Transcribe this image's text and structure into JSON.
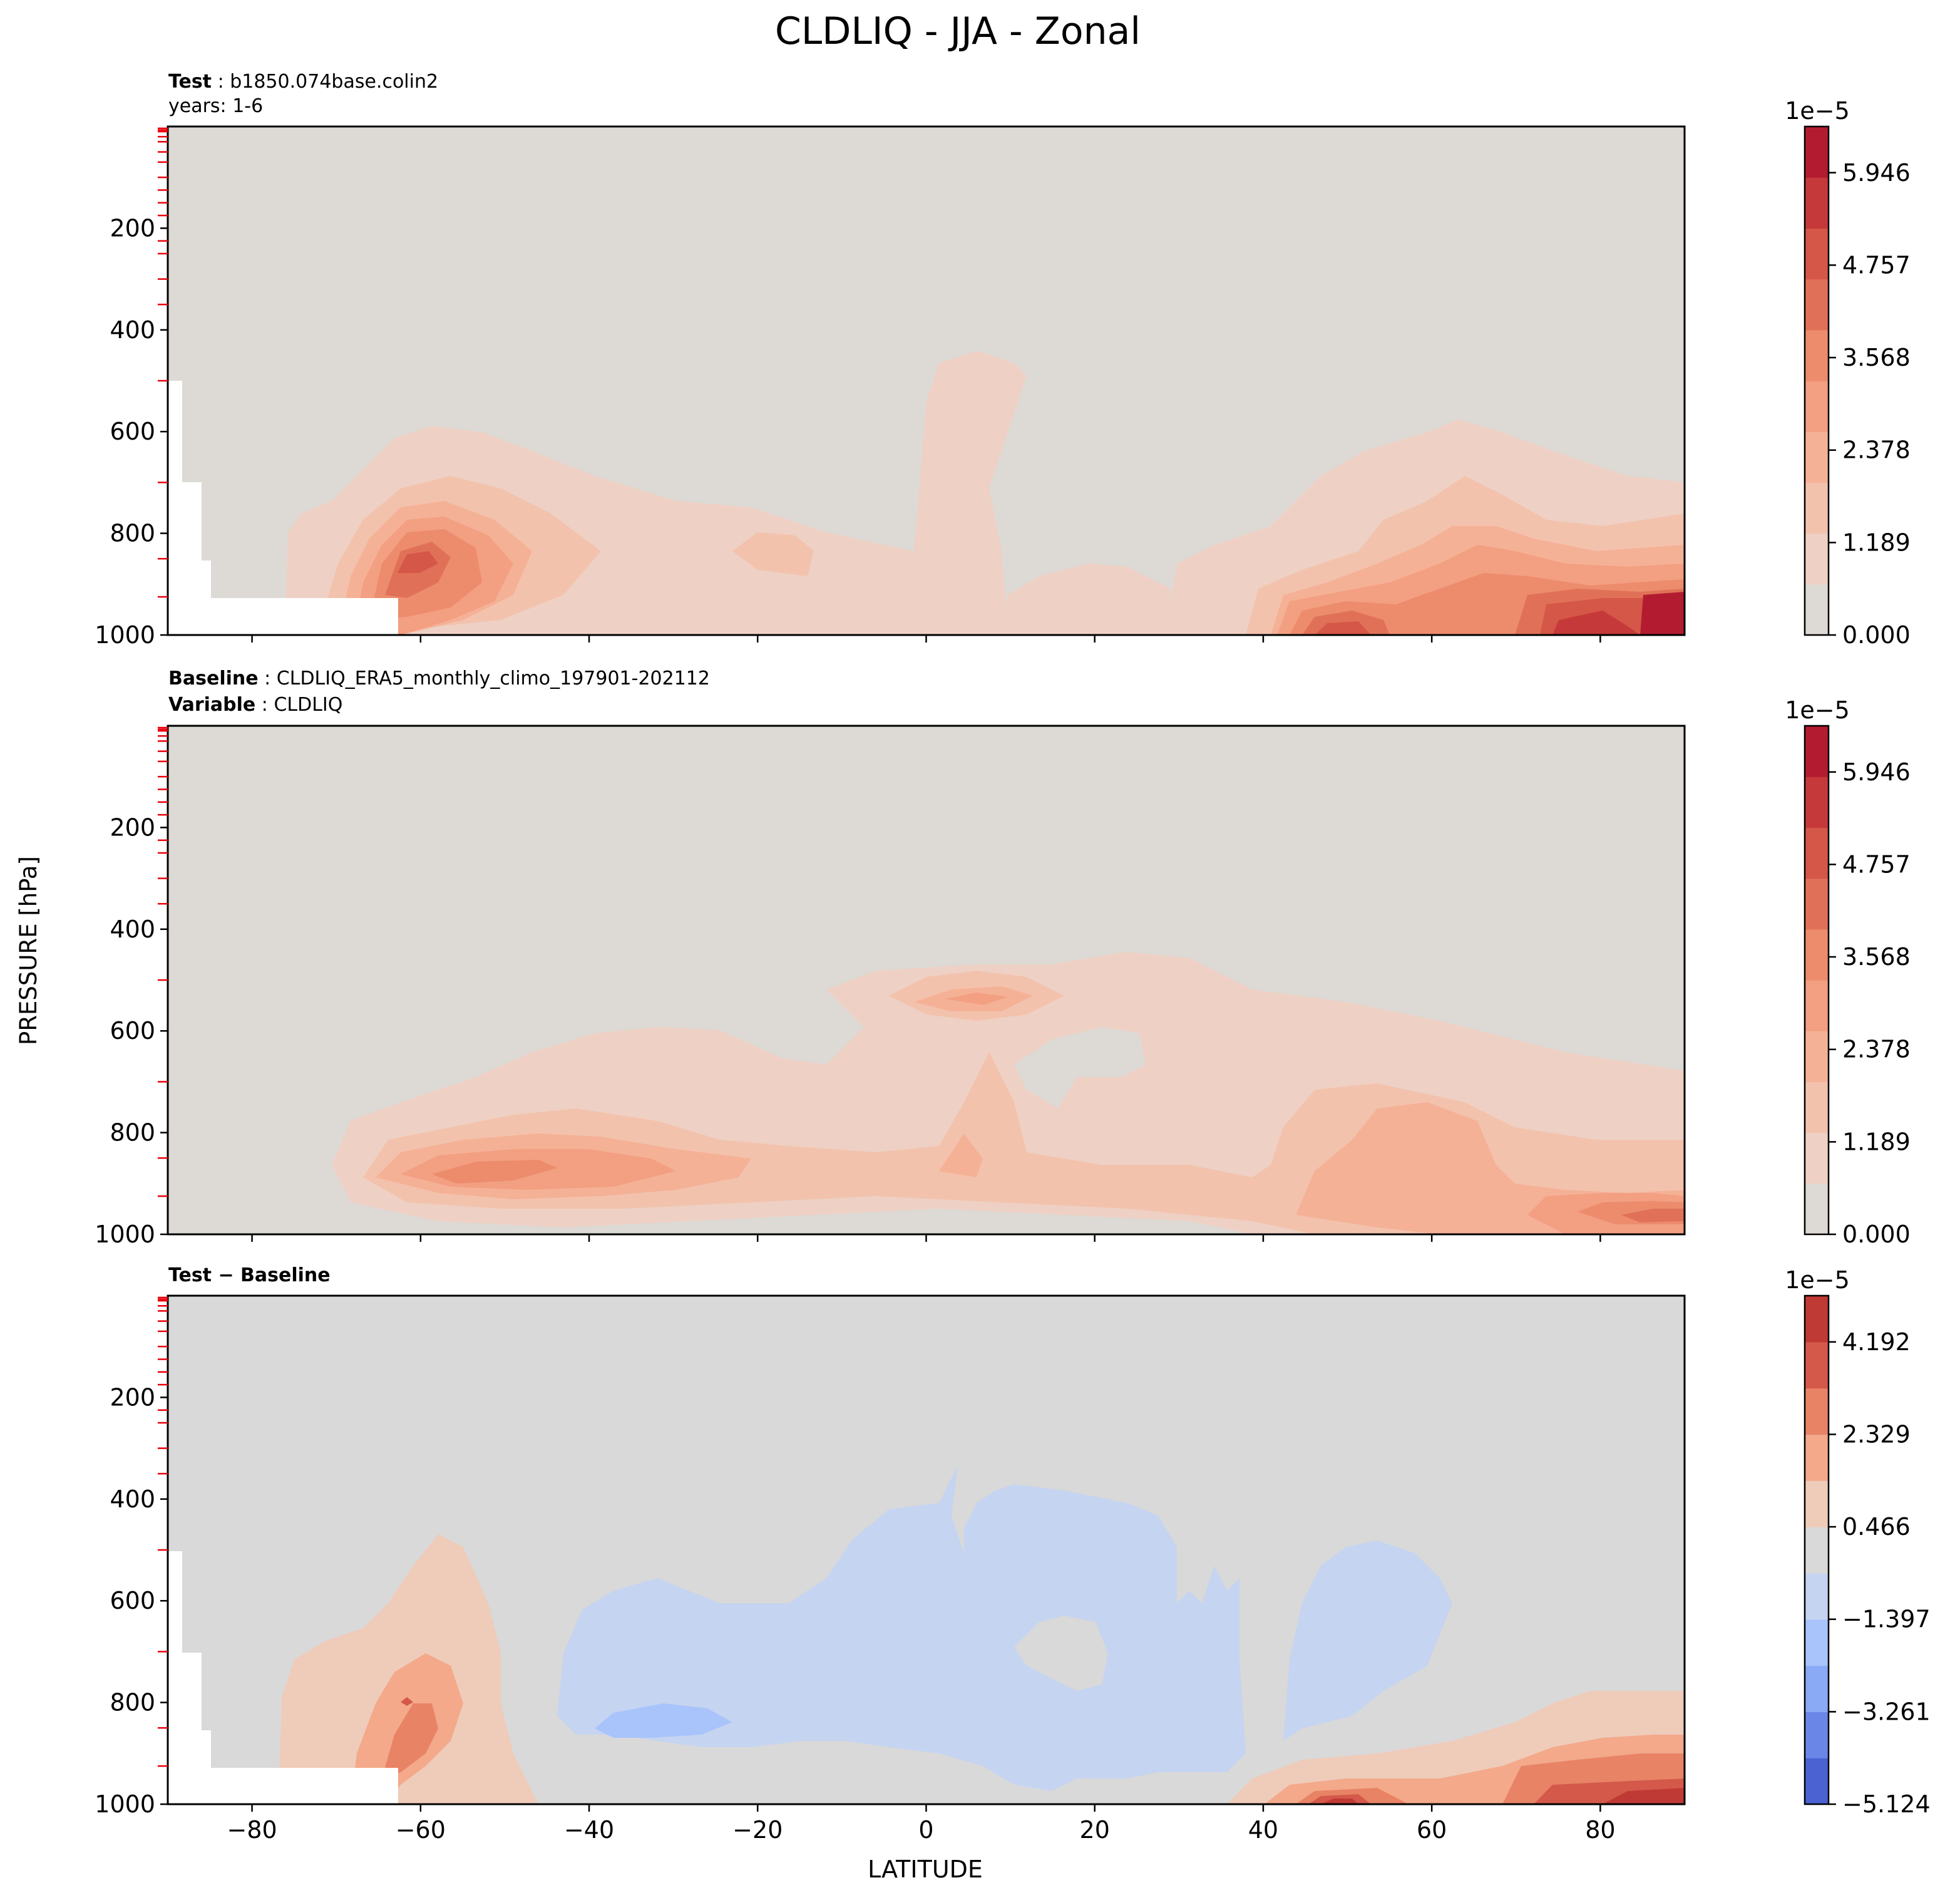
{
  "figure": {
    "title": "CLDLIQ - JJA - Zonal",
    "ylabel": "PRESSURE [hPa]",
    "xlabel": "LATITUDE"
  },
  "chart_data": [
    {
      "type": "heatmap",
      "panel": "test",
      "header": [
        {
          "bold": "Test",
          "sep": " : ",
          "text": "b1850.074base.colin2"
        },
        {
          "bold": "",
          "sep": "",
          "text": "years: 1-6"
        }
      ],
      "xlim": [
        -90,
        90
      ],
      "ylim": [
        1000,
        0
      ],
      "xticks": [
        -80,
        -60,
        -40,
        -20,
        0,
        20,
        40,
        60,
        80
      ],
      "xticks_labeled": false,
      "yticks": [
        200,
        400,
        600,
        800,
        1000
      ],
      "colorbar": {
        "offset_label": "1e−5",
        "ticks": [
          "0.000",
          "1.189",
          "2.378",
          "3.568",
          "4.757",
          "5.946"
        ],
        "range": [
          0,
          6.54
        ],
        "colors": [
          "#ddd9d5",
          "#eed1c4",
          "#f3c2ad",
          "#f5b196",
          "#f39f81",
          "#ec8c6c",
          "#e07158",
          "#d55747",
          "#c6393a",
          "#b31c30"
        ]
      },
      "features": [
        {
          "name": "SH low cloud max",
          "lat": -60,
          "lev": 860,
          "value": 4.5
        },
        {
          "name": "NH polar low cloud max",
          "lat": 82,
          "lev": 960,
          "value": 6.0
        },
        {
          "name": "NH midlatitude max",
          "lat": 50,
          "lev": 990,
          "value": 4.0
        },
        {
          "name": "tropical plume",
          "lat": 5,
          "lev": 700,
          "value": 1.0
        }
      ]
    },
    {
      "type": "heatmap",
      "panel": "baseline",
      "header": [
        {
          "bold": "Baseline",
          "sep": " : ",
          "text": "CLDLIQ_ERA5_monthly_climo_197901-202112"
        },
        {
          "bold": "Variable",
          "sep": " : ",
          "text": "CLDLIQ"
        }
      ],
      "xlim": [
        -90,
        90
      ],
      "ylim": [
        1000,
        0
      ],
      "xticks": [
        -80,
        -60,
        -40,
        -20,
        0,
        20,
        40,
        60,
        80
      ],
      "xticks_labeled": false,
      "yticks": [
        200,
        400,
        600,
        800,
        1000
      ],
      "colorbar": {
        "offset_label": "1e−5",
        "ticks": [
          "0.000",
          "1.189",
          "2.378",
          "3.568",
          "4.757",
          "5.946"
        ],
        "range": [
          0,
          6.54
        ],
        "colors": [
          "#ddd9d5",
          "#eed1c4",
          "#f3c2ad",
          "#f5b196",
          "#f39f81",
          "#ec8c6c",
          "#e07158",
          "#d55747",
          "#c6393a",
          "#b31c30"
        ]
      },
      "features": [
        {
          "name": "SH low cloud band",
          "lat": -50,
          "lev": 890,
          "value": 3.2
        },
        {
          "name": "tropical mid-level max",
          "lat": 7,
          "lev": 550,
          "value": 2.6
        },
        {
          "name": "NH midlatitude band",
          "lat": 60,
          "lev": 880,
          "value": 2.5
        },
        {
          "name": "NH polar low max",
          "lat": 85,
          "lev": 960,
          "value": 4.5
        }
      ]
    },
    {
      "type": "heatmap",
      "panel": "difference",
      "header": [
        {
          "bold": "Test − Baseline",
          "sep": "",
          "text": ""
        }
      ],
      "xlim": [
        -90,
        90
      ],
      "ylim": [
        1000,
        0
      ],
      "xticks": [
        -80,
        -60,
        -40,
        -20,
        0,
        20,
        40,
        60,
        80
      ],
      "xticks_labeled": true,
      "yticks": [
        200,
        400,
        600,
        800,
        1000
      ],
      "colorbar": {
        "offset_label": "1e−5",
        "ticks": [
          "−5.124",
          "−3.261",
          "−1.397",
          "0.466",
          "2.329",
          "4.192"
        ],
        "range": [
          -5.124,
          5.124
        ],
        "colors": [
          "#4b62d3",
          "#6a87e8",
          "#8aaaf6",
          "#a9c3fb",
          "#c5d4f0",
          "#d9d9d9",
          "#efcbba",
          "#f3a98a",
          "#e88366",
          "#d4594a",
          "#c03a35"
        ]
      },
      "features": [
        {
          "name": "SH positive",
          "lat": -60,
          "lev": 850,
          "value": 2.3
        },
        {
          "name": "SH subtropical negative",
          "lat": -30,
          "lev": 850,
          "value": -2.0
        },
        {
          "name": "tropical negative",
          "lat": 15,
          "lev": 650,
          "value": -1.0
        },
        {
          "name": "NH midlatitude negative",
          "lat": 50,
          "lev": 750,
          "value": -1.0
        },
        {
          "name": "NH low positive",
          "lat": 50,
          "lev": 990,
          "value": 4.0
        },
        {
          "name": "NH polar positive",
          "lat": 85,
          "lev": 980,
          "value": 4.5
        }
      ]
    }
  ]
}
